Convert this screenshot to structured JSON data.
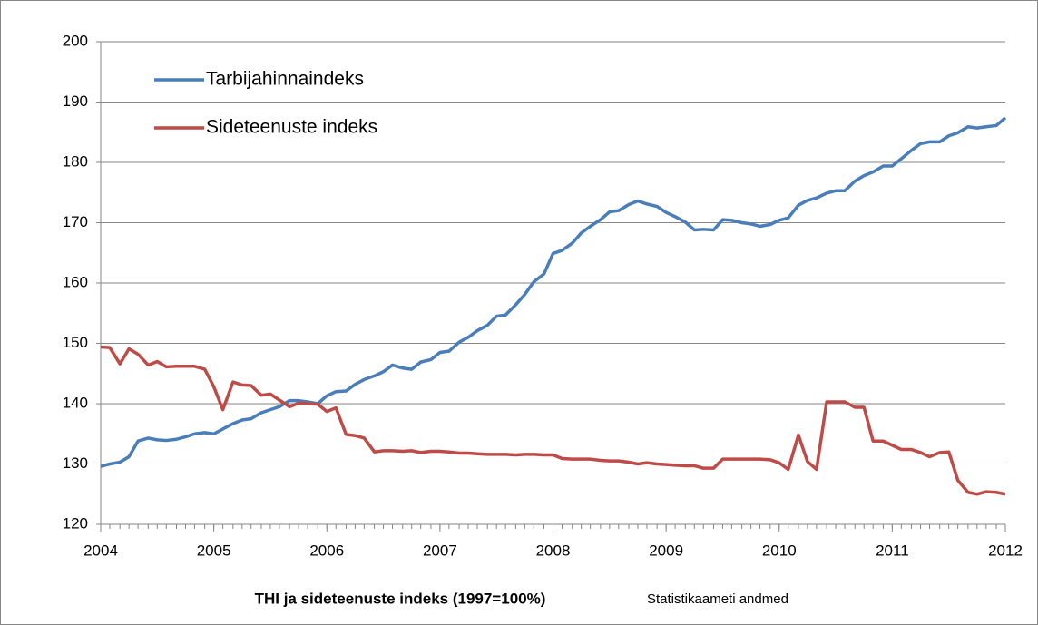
{
  "chart_data": {
    "type": "line",
    "title": "THI ja sideteenuste indeks (1997=100%)",
    "subtitle": "Statistikaameti andmed",
    "x": [
      2004,
      2004.08,
      2004.17,
      2004.25,
      2004.33,
      2004.42,
      2004.5,
      2004.58,
      2004.67,
      2004.75,
      2004.83,
      2004.92,
      2005,
      2005.08,
      2005.17,
      2005.25,
      2005.33,
      2005.42,
      2005.5,
      2005.58,
      2005.67,
      2005.75,
      2005.83,
      2005.92,
      2006,
      2006.08,
      2006.17,
      2006.25,
      2006.33,
      2006.42,
      2006.5,
      2006.58,
      2006.67,
      2006.75,
      2006.83,
      2006.92,
      2007,
      2007.08,
      2007.17,
      2007.25,
      2007.33,
      2007.42,
      2007.5,
      2007.58,
      2007.67,
      2007.75,
      2007.83,
      2007.92,
      2008,
      2008.08,
      2008.17,
      2008.25,
      2008.33,
      2008.42,
      2008.5,
      2008.58,
      2008.67,
      2008.75,
      2008.83,
      2008.92,
      2009,
      2009.08,
      2009.17,
      2009.25,
      2009.33,
      2009.42,
      2009.5,
      2009.58,
      2009.67,
      2009.75,
      2009.83,
      2009.92,
      2010,
      2010.08,
      2010.17,
      2010.25,
      2010.33,
      2010.42,
      2010.5,
      2010.58,
      2010.67,
      2010.75,
      2010.83,
      2010.92,
      2011,
      2011.08,
      2011.17,
      2011.25,
      2011.33,
      2011.42,
      2011.5,
      2011.58,
      2011.67,
      2011.75,
      2011.83,
      2011.92,
      2012
    ],
    "series": [
      {
        "name": "Tarbijahinnaindeks",
        "color": "#4a7ebb",
        "values": [
          129.6,
          130.0,
          130.3,
          131.2,
          133.8,
          134.3,
          134.0,
          133.9,
          134.1,
          134.5,
          135.0,
          135.2,
          135.0,
          135.8,
          136.7,
          137.3,
          137.5,
          138.5,
          139.0,
          139.5,
          140.5,
          140.5,
          140.3,
          140.0,
          141.3,
          142.0,
          142.1,
          143.2,
          144.0,
          144.6,
          145.3,
          146.4,
          145.9,
          145.7,
          146.9,
          147.3,
          148.5,
          148.7,
          150.2,
          151.0,
          152.1,
          153.0,
          154.5,
          154.7,
          156.4,
          158.1,
          160.2,
          161.5,
          164.9,
          165.4,
          166.6,
          168.3,
          169.4,
          170.5,
          171.8,
          172.0,
          173.0,
          173.6,
          173.1,
          172.7,
          171.7,
          171.0,
          170.1,
          168.8,
          168.9,
          168.8,
          170.5,
          170.4,
          170.0,
          169.8,
          169.4,
          169.7,
          170.4,
          170.8,
          172.9,
          173.7,
          174.1,
          174.9,
          175.3,
          175.3,
          176.9,
          177.8,
          178.4,
          179.4,
          179.4,
          180.6,
          182.0,
          183.1,
          183.4,
          183.4,
          184.4,
          184.9,
          185.9,
          185.7,
          185.9,
          186.1,
          187.4
        ]
      },
      {
        "name": "Sideteenuste indeks",
        "color": "#be4b48",
        "values": [
          149.4,
          149.3,
          146.6,
          149.1,
          148.2,
          146.4,
          147.0,
          146.1,
          146.2,
          146.2,
          146.2,
          145.7,
          142.8,
          139.0,
          143.6,
          143.1,
          143.0,
          141.4,
          141.6,
          140.6,
          139.5,
          140.1,
          140.0,
          139.9,
          138.7,
          139.3,
          134.9,
          134.7,
          134.3,
          132.0,
          132.2,
          132.2,
          132.1,
          132.2,
          131.9,
          132.1,
          132.1,
          132.0,
          131.8,
          131.8,
          131.7,
          131.6,
          131.6,
          131.6,
          131.5,
          131.6,
          131.6,
          131.5,
          131.5,
          130.9,
          130.8,
          130.8,
          130.8,
          130.6,
          130.5,
          130.5,
          130.3,
          130.0,
          130.2,
          130.0,
          129.9,
          129.8,
          129.7,
          129.7,
          129.3,
          129.3,
          130.8,
          130.8,
          130.8,
          130.8,
          130.8,
          130.7,
          130.2,
          129.1,
          134.8,
          130.4,
          129.1,
          140.3,
          140.3,
          140.3,
          139.4,
          139.4,
          133.8,
          133.8,
          133.1,
          132.4,
          132.4,
          131.9,
          131.2,
          131.9,
          132.0,
          127.3,
          125.3,
          125.0,
          125.4,
          125.3,
          125.0
        ]
      }
    ],
    "xlim": [
      2004,
      2012
    ],
    "xticks": [
      2004,
      2005,
      2006,
      2007,
      2008,
      2009,
      2010,
      2011,
      2012
    ],
    "ylim": [
      120,
      200
    ],
    "yticks": [
      120,
      130,
      140,
      150,
      160,
      170,
      180,
      190,
      200
    ],
    "grid": true,
    "legend": "top-left"
  }
}
